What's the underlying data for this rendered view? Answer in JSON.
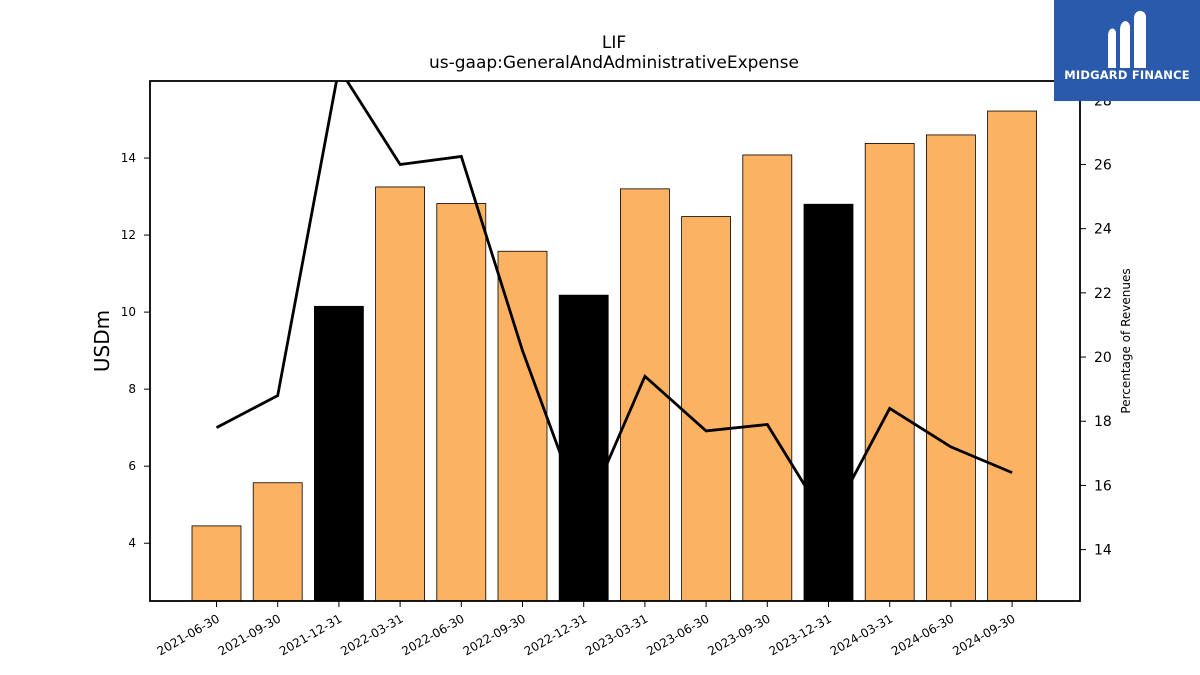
{
  "chart_data": {
    "type": "bar",
    "title": "LIF",
    "subtitle": "us-gaap:GeneralAndAdministrativeExpense",
    "ylabel": "USDm",
    "y2label": "Percentage of Revenues",
    "categories": [
      "2021-06-30",
      "2021-09-30",
      "2021-12-31",
      "2022-03-31",
      "2022-06-30",
      "2022-09-30",
      "2022-12-31",
      "2023-03-31",
      "2023-06-30",
      "2023-09-30",
      "2023-12-31",
      "2024-03-31",
      "2024-06-30",
      "2024-09-30"
    ],
    "series": [
      {
        "type": "bar",
        "values": [
          4.45,
          5.57,
          10.15,
          13.25,
          12.82,
          11.58,
          10.44,
          13.2,
          12.48,
          14.08,
          12.8,
          14.38,
          14.6,
          15.22
        ],
        "colors": [
          "#fbb263",
          "#fbb263",
          "#000000",
          "#fbb263",
          "#fbb263",
          "#fbb263",
          "#000000",
          "#fbb263",
          "#fbb263",
          "#fbb263",
          "#000000",
          "#fbb263",
          "#fbb263",
          "#fbb263"
        ]
      },
      {
        "type": "line",
        "axis": "right",
        "values": [
          17.8,
          18.8,
          29.0,
          26.0,
          26.25,
          20.2,
          15.0,
          19.4,
          17.7,
          17.9,
          14.8,
          18.4,
          17.2,
          16.4
        ]
      }
    ],
    "ylim": [
      2.5,
      16.0
    ],
    "y2lim": [
      12.4,
      28.6
    ],
    "yticks": [
      4,
      6,
      8,
      10,
      12,
      14
    ],
    "y2ticks": [
      14,
      16,
      18,
      20,
      22,
      24,
      26,
      28
    ],
    "grid": false,
    "colors": {
      "bar": "#fbb263",
      "highlight": "#000000",
      "line": "#000000"
    }
  },
  "logo": {
    "text": "MIDGARD FINANCE",
    "background": "#2a5aab"
  }
}
